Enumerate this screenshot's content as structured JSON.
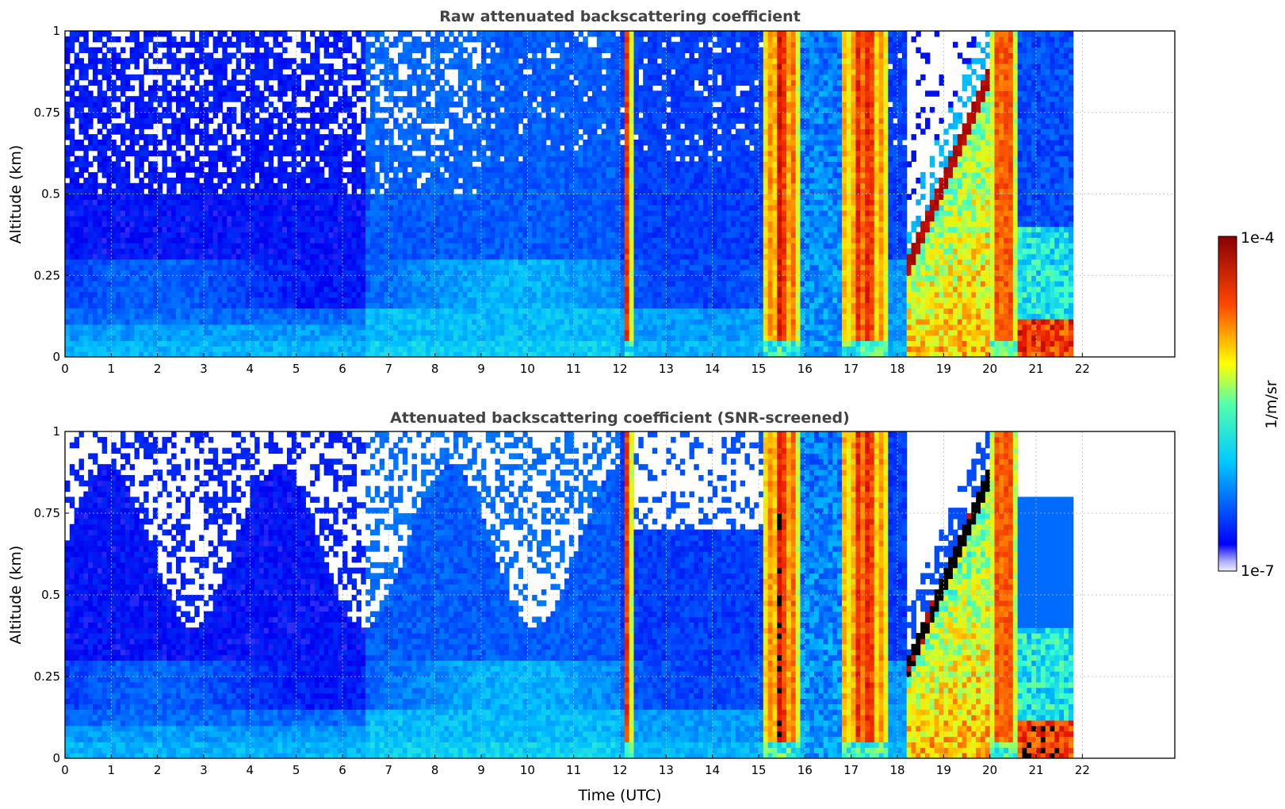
{
  "chart_data": [
    {
      "type": "heatmap",
      "title": "Raw attenuated backscattering coefficient",
      "xlabel": "",
      "ylabel": "Altitude (km)",
      "xlim": [
        0,
        24
      ],
      "ylim": [
        0,
        1
      ],
      "x_ticks": [
        "0",
        "1",
        "2",
        "3",
        "4",
        "5",
        "6",
        "7",
        "8",
        "9",
        "10",
        "11",
        "12",
        "13",
        "14",
        "15",
        "16",
        "17",
        "18",
        "19",
        "20",
        "21",
        "22"
      ],
      "y_ticks": [
        "0",
        "0.25",
        "0.5",
        "0.75",
        "1"
      ],
      "grid": true,
      "screened": false,
      "data_end_time": 21.8,
      "aerosol_layer_top_km": 0.3,
      "opaque_cloud_periods": [
        {
          "start": 12.1,
          "end": 12.25
        },
        {
          "start": 15.1,
          "end": 15.9
        },
        {
          "start": 16.8,
          "end": 17.8
        },
        {
          "start": 20.0,
          "end": 20.6
        }
      ],
      "rising_cloud_layer": {
        "start_time": 18.2,
        "end_time": 20.0,
        "start_alt_km": 0.3,
        "end_alt_km": 0.9
      }
    },
    {
      "type": "heatmap",
      "title": "Attenuated backscattering coefficient (SNR-screened)",
      "xlabel": "Time (UTC)",
      "ylabel": "Altitude (km)",
      "xlim": [
        0,
        24
      ],
      "ylim": [
        0,
        1
      ],
      "x_ticks": [
        "0",
        "1",
        "2",
        "3",
        "4",
        "5",
        "6",
        "7",
        "8",
        "9",
        "10",
        "11",
        "12",
        "13",
        "14",
        "15",
        "16",
        "17",
        "18",
        "19",
        "20",
        "21",
        "22"
      ],
      "y_ticks": [
        "0",
        "0.25",
        "0.5",
        "0.75",
        "1"
      ],
      "grid": true,
      "screened": true,
      "data_end_time": 21.8,
      "aerosol_layer_top_km": 0.3,
      "opaque_cloud_periods": [
        {
          "start": 12.1,
          "end": 12.25
        },
        {
          "start": 15.1,
          "end": 15.9
        },
        {
          "start": 16.8,
          "end": 17.8
        },
        {
          "start": 20.0,
          "end": 20.6
        }
      ],
      "rising_cloud_layer": {
        "start_time": 18.2,
        "end_time": 20.0,
        "start_alt_km": 0.3,
        "end_alt_km": 0.9
      }
    }
  ],
  "colorbar": {
    "label": "1/m/sr",
    "min_label": "1e-7",
    "max_label": "1e-4",
    "scale": "log",
    "colormap": "jet"
  }
}
